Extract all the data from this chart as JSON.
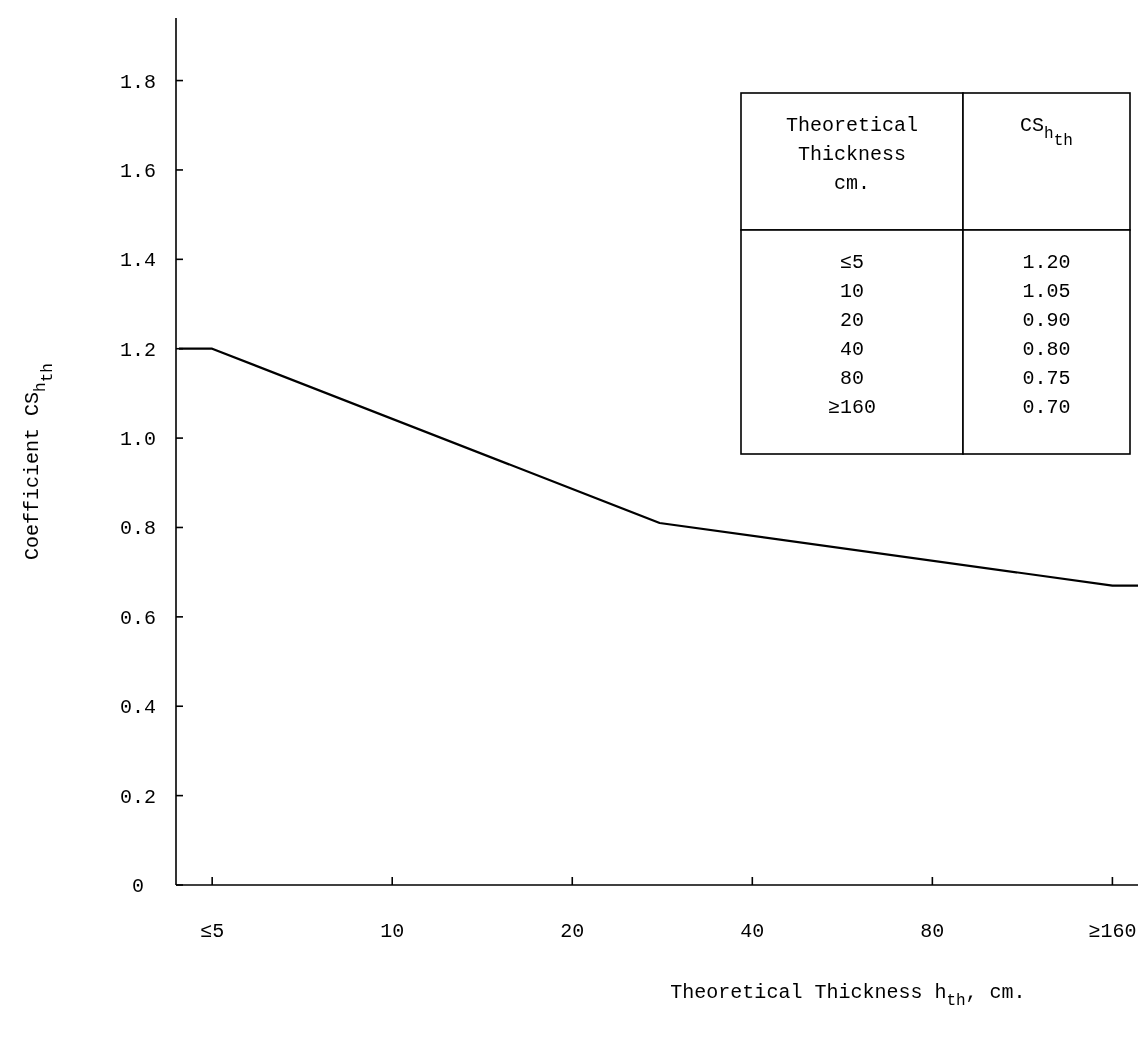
{
  "chart_data": {
    "type": "line",
    "xlabel": "Theoretical Thickness h$_{th}$,  cm.",
    "ylabel": "Coefficient CS$_{h}$$_{th}$",
    "x": [
      4.4,
      5,
      28,
      160,
      178
    ],
    "series": [
      {
        "color": "#000000",
        "values": [
          1.2,
          1.2,
          0.81,
          0.67,
          0.67
        ]
      }
    ],
    "log": "x",
    "xlim": [
      4.35,
      180
    ],
    "ylim": [
      0,
      1.94
    ],
    "xticks": [
      {
        "value": 5,
        "label": "≤5"
      },
      10,
      20,
      40,
      80,
      {
        "value": 160,
        "label": "≥160"
      }
    ],
    "yticks": [
      {
        "value": 0,
        "label": "0"
      },
      0.2,
      0.4,
      0.6,
      0.8,
      {
        "value": 1,
        "label": "1.0"
      },
      1.2,
      1.4,
      1.6,
      1.8
    ],
    "annotations": [
      "Theoretical Thickness cm.",
      "CS$_{h}$$_{th}$",
      "≤5",
      "1.20",
      "10",
      "1.05",
      "20",
      "0.90",
      "40",
      "0.80",
      "80",
      "0.75",
      "≥160",
      "0.70"
    ]
  }
}
